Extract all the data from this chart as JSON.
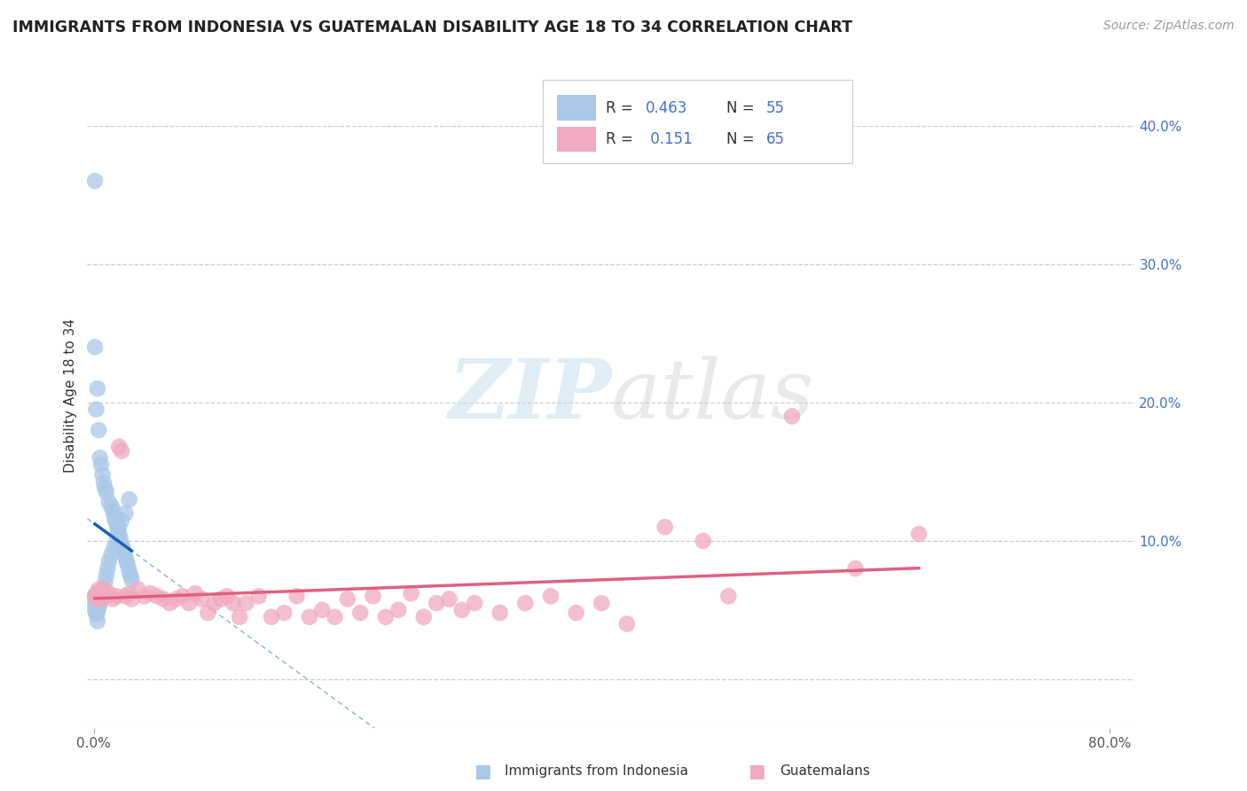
{
  "title": "IMMIGRANTS FROM INDONESIA VS GUATEMALAN DISABILITY AGE 18 TO 34 CORRELATION CHART",
  "source_text": "Source: ZipAtlas.com",
  "ylabel": "Disability Age 18 to 34",
  "xlim": [
    -0.005,
    0.82
  ],
  "ylim": [
    -0.035,
    0.445
  ],
  "x_ticks": [
    0.0,
    0.8
  ],
  "x_tick_labels": [
    "0.0%",
    "80.0%"
  ],
  "y_ticks": [
    0.0,
    0.1,
    0.2,
    0.3,
    0.4
  ],
  "y_tick_labels": [
    "",
    "10.0%",
    "20.0%",
    "30.0%",
    "40.0%"
  ],
  "legend_R1": "0.463",
  "legend_N1": "55",
  "legend_R2": "0.151",
  "legend_N2": "65",
  "watermark_ZIP": "ZIP",
  "watermark_atlas": "atlas",
  "background_color": "#ffffff",
  "grid_color": "#cccccc",
  "series1_color": "#aac8e8",
  "series1_line_color": "#1a5eb8",
  "series2_color": "#f0aabf",
  "series2_line_color": "#e06080",
  "series1_x": [
    0.001,
    0.001,
    0.001,
    0.002,
    0.002,
    0.002,
    0.003,
    0.003,
    0.003,
    0.004,
    0.004,
    0.005,
    0.006,
    0.007,
    0.008,
    0.009,
    0.01,
    0.011,
    0.012,
    0.014,
    0.016,
    0.018,
    0.02,
    0.022,
    0.025,
    0.028,
    0.001,
    0.001,
    0.002,
    0.003,
    0.004,
    0.005,
    0.006,
    0.007,
    0.008,
    0.009,
    0.01,
    0.012,
    0.014,
    0.015,
    0.016,
    0.017,
    0.018,
    0.019,
    0.02,
    0.021,
    0.022,
    0.023,
    0.024,
    0.025,
    0.026,
    0.027,
    0.028,
    0.029,
    0.03
  ],
  "series1_y": [
    0.06,
    0.055,
    0.05,
    0.058,
    0.052,
    0.047,
    0.055,
    0.048,
    0.042,
    0.06,
    0.052,
    0.055,
    0.058,
    0.062,
    0.065,
    0.07,
    0.075,
    0.08,
    0.085,
    0.09,
    0.095,
    0.1,
    0.11,
    0.115,
    0.12,
    0.13,
    0.36,
    0.24,
    0.195,
    0.21,
    0.18,
    0.16,
    0.155,
    0.148,
    0.142,
    0.138,
    0.135,
    0.128,
    0.125,
    0.122,
    0.118,
    0.115,
    0.112,
    0.108,
    0.105,
    0.102,
    0.098,
    0.095,
    0.092,
    0.088,
    0.085,
    0.082,
    0.078,
    0.075,
    0.072
  ],
  "series2_x": [
    0.001,
    0.002,
    0.003,
    0.004,
    0.005,
    0.006,
    0.007,
    0.008,
    0.01,
    0.012,
    0.015,
    0.018,
    0.02,
    0.022,
    0.025,
    0.028,
    0.03,
    0.035,
    0.04,
    0.045,
    0.05,
    0.055,
    0.06,
    0.065,
    0.07,
    0.075,
    0.08,
    0.085,
    0.09,
    0.095,
    0.1,
    0.105,
    0.11,
    0.115,
    0.12,
    0.13,
    0.14,
    0.15,
    0.16,
    0.17,
    0.18,
    0.19,
    0.2,
    0.21,
    0.22,
    0.23,
    0.24,
    0.25,
    0.26,
    0.27,
    0.28,
    0.29,
    0.3,
    0.32,
    0.34,
    0.36,
    0.38,
    0.4,
    0.42,
    0.45,
    0.48,
    0.5,
    0.55,
    0.6,
    0.65
  ],
  "series2_y": [
    0.06,
    0.062,
    0.058,
    0.065,
    0.06,
    0.058,
    0.062,
    0.065,
    0.06,
    0.062,
    0.058,
    0.06,
    0.168,
    0.165,
    0.06,
    0.062,
    0.058,
    0.065,
    0.06,
    0.062,
    0.06,
    0.058,
    0.055,
    0.058,
    0.06,
    0.055,
    0.062,
    0.058,
    0.048,
    0.055,
    0.058,
    0.06,
    0.055,
    0.045,
    0.055,
    0.06,
    0.045,
    0.048,
    0.06,
    0.045,
    0.05,
    0.045,
    0.058,
    0.048,
    0.06,
    0.045,
    0.05,
    0.062,
    0.045,
    0.055,
    0.058,
    0.05,
    0.055,
    0.048,
    0.055,
    0.06,
    0.048,
    0.055,
    0.04,
    0.11,
    0.1,
    0.06,
    0.19,
    0.08,
    0.105
  ]
}
